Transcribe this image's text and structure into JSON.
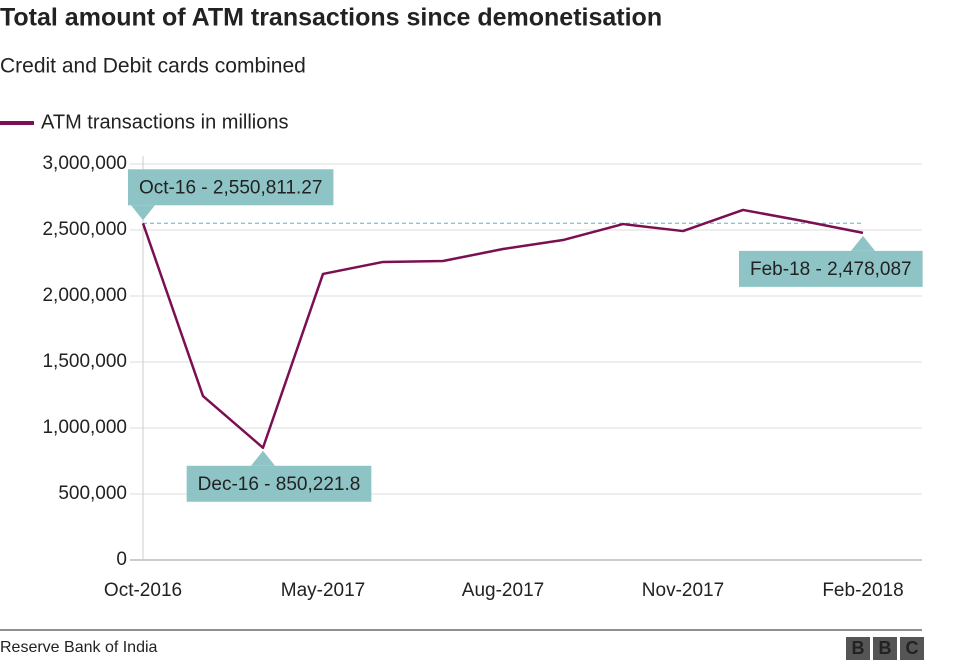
{
  "chart_data": {
    "type": "line",
    "title": "Total amount of ATM transactions since demonetisation",
    "subtitle": "Credit and Debit cards combined",
    "categories": [
      "Oct-2016",
      null,
      null,
      "May-2017",
      null,
      null,
      "Aug-2017",
      null,
      null,
      "Nov-2017",
      null,
      null,
      "Feb-2018"
    ],
    "series": [
      {
        "name": "ATM transactions in millions",
        "color": "#7a0f52",
        "values": [
          2550811.27,
          1242000,
          850221.8,
          2167000,
          2258000,
          2265000,
          2356000,
          2424000,
          2545000,
          2492000,
          2652000,
          2568000,
          2478087
        ]
      }
    ],
    "ylim": [
      0,
      3000000
    ],
    "yticks": [
      0,
      {
        "value": 500000,
        "label": "500,000"
      },
      {
        "value": 1000000,
        "label": "1,000,000"
      },
      {
        "value": 1500000,
        "label": "1,500,000"
      },
      {
        "value": 2000000,
        "label": "2,000,000"
      },
      {
        "value": 2500000,
        "label": "2,500,000"
      },
      {
        "value": 3000000,
        "label": "3,000,000"
      }
    ],
    "grid": true,
    "annotations": [
      "Oct-16 - 2,550,811.27",
      "Dec-16 - 850,221.8",
      "Feb-18 - 2,478,087"
    ],
    "source": "Reserve Bank of India",
    "logo": [
      "B",
      "B",
      "C"
    ]
  }
}
